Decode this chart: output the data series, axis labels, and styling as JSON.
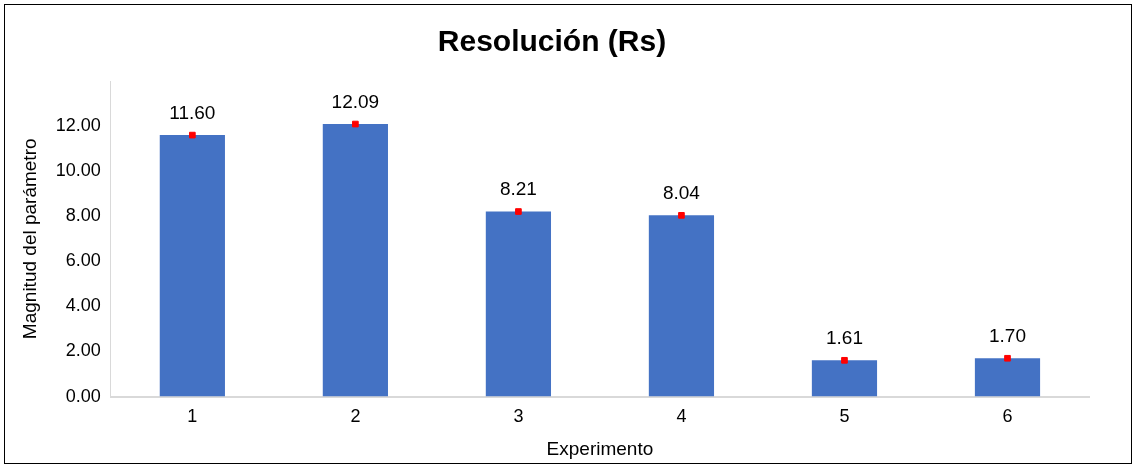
{
  "chart_data": {
    "type": "bar",
    "title": "Resolución (Rs)",
    "xlabel": "Experimento",
    "ylabel": "Magnitud del parámetro",
    "categories": [
      "1",
      "2",
      "3",
      "4",
      "5",
      "6"
    ],
    "series": [
      {
        "color": "#4472c4",
        "values": [
          11.6,
          12.09,
          8.21,
          8.04,
          1.61,
          1.7
        ],
        "value_labels": [
          "11.60",
          "12.09",
          "8.21",
          "8.04",
          "1.61",
          "1.70"
        ]
      },
      {
        "type": "scatter",
        "color": "#ff0000",
        "x": [
          "1",
          "2",
          "3",
          "4",
          "5",
          "6"
        ],
        "values": [
          11.6,
          12.09,
          8.21,
          8.04,
          1.61,
          1.7
        ]
      }
    ],
    "marker": "square",
    "ylim": [
      0,
      14
    ],
    "yticks": [
      {
        "value": 0,
        "label": "0.00"
      },
      {
        "value": 2,
        "label": "2.00"
      },
      {
        "value": 4,
        "label": "4.00"
      },
      {
        "value": 6,
        "label": "6.00"
      },
      {
        "value": 8,
        "label": "8.00"
      },
      {
        "value": 10,
        "label": "10.00"
      },
      {
        "value": 12,
        "label": "12.00"
      }
    ],
    "grid": false,
    "legend": false
  }
}
